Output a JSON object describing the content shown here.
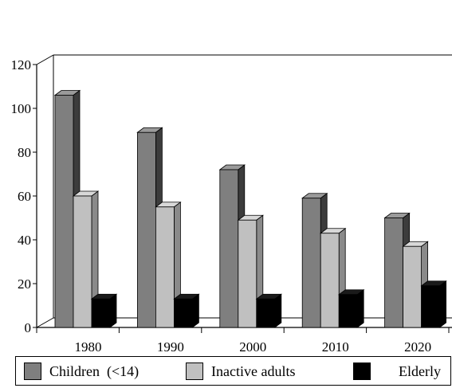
{
  "chart_data": {
    "type": "bar",
    "style": "3d-clustered",
    "categories": [
      "1980",
      "1990",
      "2000",
      "2010",
      "2020"
    ],
    "series": [
      {
        "name": "Children  (<14)",
        "values": [
          106,
          89,
          72,
          59,
          50
        ],
        "color": "#7f7f7f",
        "side_color": "#3c3c3c",
        "top_color": "#9a9a9a"
      },
      {
        "name": "Inactive adults",
        "values": [
          60,
          55,
          49,
          43,
          37
        ],
        "color": "#c0c0c0",
        "side_color": "#8a8a8a",
        "top_color": "#d8d8d8"
      },
      {
        "name": "Elderly",
        "values": [
          13,
          13,
          13,
          15,
          19
        ],
        "color": "#000000",
        "side_color": "#000000",
        "top_color": "#1a1a1a"
      }
    ],
    "yticks": [
      0,
      20,
      40,
      60,
      80,
      100,
      120
    ],
    "ylim": [
      0,
      120
    ],
    "title": "",
    "xlabel": "",
    "ylabel": "",
    "grid": false,
    "legend_position": "bottom"
  }
}
